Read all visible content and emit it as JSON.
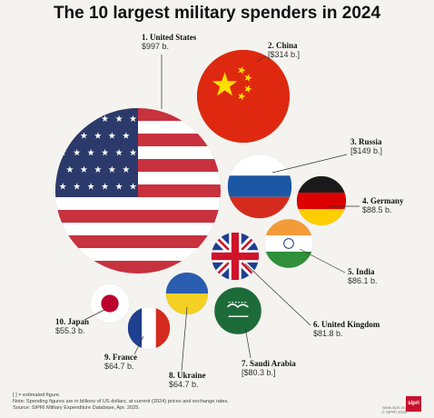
{
  "title": "The 10 largest military spenders in 2024",
  "chart_data": {
    "type": "bubble",
    "title": "The 10 largest military spenders in 2024",
    "unit": "billions of US dollars",
    "items": [
      {
        "rank": 1,
        "label": "1. United States",
        "value": 997,
        "value_label": "$997 b.",
        "flag": "us-flag-icon"
      },
      {
        "rank": 2,
        "label": "2. China",
        "value": 314,
        "value_label": "[$314 b.]",
        "flag": "china-flag-icon",
        "estimated": true
      },
      {
        "rank": 3,
        "label": "3. Russia",
        "value": 149,
        "value_label": "[$149 b.]",
        "flag": "russia-flag-icon",
        "estimated": true
      },
      {
        "rank": 4,
        "label": "4. Germany",
        "value": 88.5,
        "value_label": "$88.5 b.",
        "flag": "germany-flag-icon"
      },
      {
        "rank": 5,
        "label": "5. India",
        "value": 86.1,
        "value_label": "$86.1 b.",
        "flag": "india-flag-icon"
      },
      {
        "rank": 6,
        "label": "6. United Kingdom",
        "value": 81.8,
        "value_label": "$81.8 b.",
        "flag": "uk-flag-icon"
      },
      {
        "rank": 7,
        "label": "7. Saudi Arabia",
        "value": 80.3,
        "value_label": "[$80.3 b.]",
        "flag": "saudi-flag-icon",
        "estimated": true
      },
      {
        "rank": 8,
        "label": "8. Ukraine",
        "value": 64.7,
        "value_label": "$64.7 b.",
        "flag": "ukraine-flag-icon"
      },
      {
        "rank": 9,
        "label": "9. France",
        "value": 64.7,
        "value_label": "$64.7 b.",
        "flag": "france-flag-icon"
      },
      {
        "rank": 10,
        "label": "10. Japan",
        "value": 55.3,
        "value_label": "$55.3 b.",
        "flag": "japan-flag-icon"
      }
    ]
  },
  "footer": {
    "legend_note": "[ ] = estimated figure.",
    "note": "Note: Spending figures are in billions of US dollars, at current (2024) prices and exchange rates.",
    "source": "Source: SIPRI Military Expenditure Database, Apr. 2025."
  },
  "credits": {
    "site": "www.sipri.org",
    "copyright": "© SIPRI 2025",
    "logo": "sipri"
  },
  "colors": {
    "us_red": "#c8313e",
    "us_blue": "#2c3a6b",
    "china_red": "#de2910",
    "gold": "#ffde00",
    "background": "#f4f3ef"
  }
}
